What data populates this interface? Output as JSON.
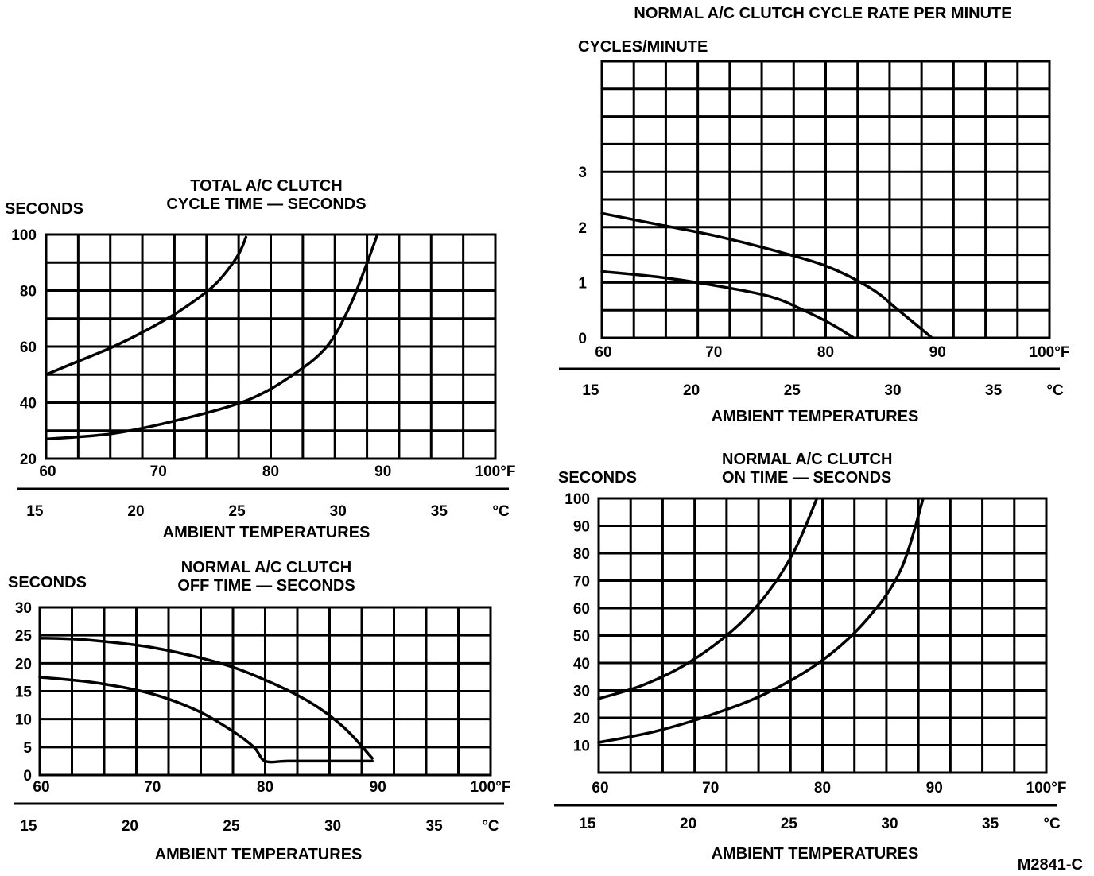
{
  "figure_id": "M2841-C",
  "chart_data": [
    {
      "id": "total",
      "type": "line",
      "title_lines": [
        "TOTAL A/C CLUTCH",
        "CYCLE TIME — SECONDS"
      ],
      "ylabel": "SECONDS",
      "xlabel": "AMBIENT TEMPERATURES",
      "xlim": [
        60,
        100
      ],
      "ylim": [
        20,
        100
      ],
      "x_ticks": [
        "60",
        "70",
        "80",
        "90",
        "100°F"
      ],
      "y_ticks": [
        {
          "label": "100",
          "value": 100
        },
        {
          "label": "80",
          "value": 80
        },
        {
          "label": "60",
          "value": 60
        },
        {
          "label": "40",
          "value": 40
        },
        {
          "label": "20",
          "value": 20
        }
      ],
      "celsius_ticks": [
        {
          "label": "15",
          "f": 59
        },
        {
          "label": "20",
          "f": 68
        },
        {
          "label": "25",
          "f": 77
        },
        {
          "label": "30",
          "f": 86
        },
        {
          "label": "35",
          "f": 95
        },
        {
          "label": "°C",
          "f": 100.5
        }
      ],
      "series": [
        {
          "name": "upper",
          "x": [
            60,
            63,
            66,
            69,
            72,
            75,
            77,
            77.8
          ],
          "y": [
            50,
            55,
            60,
            66,
            73,
            82,
            92,
            99
          ]
        },
        {
          "name": "lower",
          "x": [
            60,
            66,
            72,
            78,
            82,
            85,
            87,
            88.5,
            89.5
          ],
          "y": [
            27,
            29,
            34,
            41,
            50,
            60,
            74,
            89,
            100
          ]
        }
      ]
    },
    {
      "id": "offtime",
      "type": "line",
      "title_lines": [
        "NORMAL A/C CLUTCH",
        "OFF TIME — SECONDS"
      ],
      "ylabel": "SECONDS",
      "xlabel": "AMBIENT TEMPERATURES",
      "xlim": [
        60,
        100
      ],
      "ylim": [
        0,
        30
      ],
      "x_ticks": [
        "60",
        "70",
        "80",
        "90",
        "100°F"
      ],
      "y_ticks": [
        {
          "label": "30",
          "value": 30
        },
        {
          "label": "25",
          "value": 25
        },
        {
          "label": "20",
          "value": 20
        },
        {
          "label": "15",
          "value": 15
        },
        {
          "label": "10",
          "value": 10
        },
        {
          "label": "5",
          "value": 5
        },
        {
          "label": "0",
          "value": 0
        }
      ],
      "celsius_ticks": [
        {
          "label": "15",
          "f": 59
        },
        {
          "label": "20",
          "f": 68
        },
        {
          "label": "25",
          "f": 77
        },
        {
          "label": "30",
          "f": 86
        },
        {
          "label": "35",
          "f": 95
        },
        {
          "label": "°C",
          "f": 100
        }
      ],
      "series": [
        {
          "name": "upper",
          "x": [
            60,
            64,
            70,
            76,
            80,
            84,
            87,
            89.5
          ],
          "y": [
            24.5,
            24.2,
            22.8,
            20,
            17,
            13,
            8.5,
            3
          ]
        },
        {
          "name": "lower",
          "x": [
            60,
            65,
            70,
            74,
            77,
            79,
            80,
            82,
            86,
            89.5
          ],
          "y": [
            17.5,
            16.5,
            14.5,
            11.5,
            8,
            5,
            2.5,
            2.5,
            2.5,
            2.5
          ]
        }
      ]
    },
    {
      "id": "cyclerate",
      "type": "line",
      "title_lines": [
        "NORMAL A/C CLUTCH CYCLE RATE PER MINUTE"
      ],
      "ylabel": "CYCLES/MINUTE",
      "xlabel": "AMBIENT TEMPERATURES",
      "xlim": [
        60,
        100
      ],
      "ylim": [
        0,
        5
      ],
      "x_ticks": [
        "60",
        "70",
        "80",
        "90",
        "100°F"
      ],
      "y_ticks": [
        {
          "label": "3",
          "value": 3
        },
        {
          "label": "2",
          "value": 2
        },
        {
          "label": "1",
          "value": 1
        },
        {
          "label": "0",
          "value": 0
        }
      ],
      "celsius_ticks": [
        {
          "label": "15",
          "f": 59
        },
        {
          "label": "20",
          "f": 68
        },
        {
          "label": "25",
          "f": 77
        },
        {
          "label": "30",
          "f": 86
        },
        {
          "label": "35",
          "f": 95
        },
        {
          "label": "°C",
          "f": 100.5
        }
      ],
      "series": [
        {
          "name": "upper",
          "x": [
            60,
            65,
            70,
            75,
            80,
            84,
            86.5,
            89.5
          ],
          "y": [
            2.25,
            2.05,
            1.85,
            1.6,
            1.3,
            0.9,
            0.5,
            0
          ]
        },
        {
          "name": "lower",
          "x": [
            60,
            65,
            70,
            75,
            78,
            80.5,
            82.5
          ],
          "y": [
            1.2,
            1.1,
            0.95,
            0.75,
            0.5,
            0.25,
            0
          ]
        }
      ]
    },
    {
      "id": "ontime",
      "type": "line",
      "title_lines": [
        "NORMAL A/C CLUTCH",
        "ON TIME — SECONDS"
      ],
      "ylabel": "SECONDS",
      "xlabel": "AMBIENT TEMPERATURES",
      "xlim": [
        60,
        100
      ],
      "ylim": [
        0,
        100
      ],
      "x_ticks": [
        "60",
        "70",
        "80",
        "90",
        "100°F"
      ],
      "y_ticks": [
        {
          "label": "100",
          "value": 100
        },
        {
          "label": "90",
          "value": 90
        },
        {
          "label": "80",
          "value": 80
        },
        {
          "label": "70",
          "value": 70
        },
        {
          "label": "60",
          "value": 60
        },
        {
          "label": "50",
          "value": 50
        },
        {
          "label": "40",
          "value": 40
        },
        {
          "label": "30",
          "value": 30
        },
        {
          "label": "20",
          "value": 20
        },
        {
          "label": "10",
          "value": 10
        }
      ],
      "celsius_ticks": [
        {
          "label": "15",
          "f": 59
        },
        {
          "label": "20",
          "f": 68
        },
        {
          "label": "25",
          "f": 77
        },
        {
          "label": "30",
          "f": 86
        },
        {
          "label": "35",
          "f": 95
        },
        {
          "label": "°C",
          "f": 100.5
        }
      ],
      "series": [
        {
          "name": "upper",
          "x": [
            60,
            64,
            68,
            72,
            75,
            77.5,
            79.5
          ],
          "y": [
            27,
            32,
            40,
            52,
            65,
            81,
            100
          ]
        },
        {
          "name": "lower",
          "x": [
            60,
            65,
            70,
            75,
            80,
            84,
            87,
            89
          ],
          "y": [
            11,
            15,
            21,
            29,
            41,
            56,
            74,
            100
          ]
        }
      ]
    }
  ]
}
